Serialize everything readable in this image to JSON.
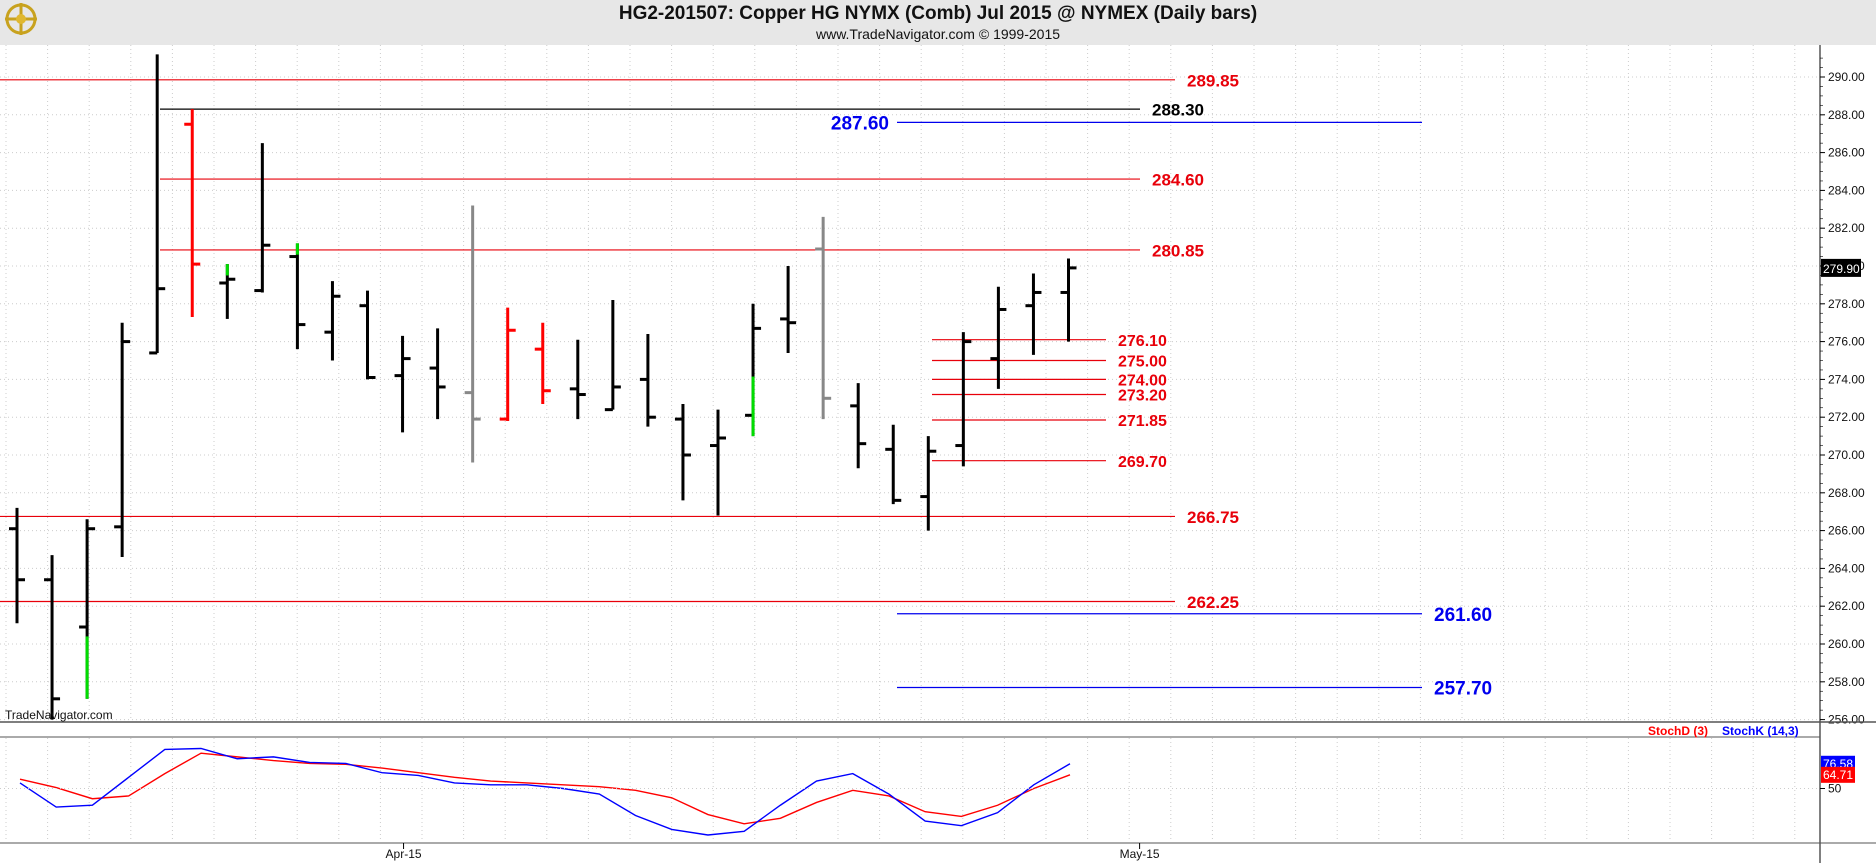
{
  "header": {
    "title": "HG2-201507:  Copper HG NYMX (Comb) Jul 2015 @ NYMEX  (Daily bars)",
    "subtitle": "www.TradeNavigator.com © 1999-2015",
    "watermark": "TradeNavigator.com"
  },
  "colors": {
    "bar": "#000000",
    "down_bar": "#ff0000",
    "grey_bar": "#888888",
    "green_tick": "#00dd00",
    "resistance": "#e8000a",
    "swing": "#000000",
    "target": "#0000ee",
    "stoch_d": "#ff0000",
    "stoch_k": "#0000ff",
    "grid": "#cccccc"
  },
  "chart_data": [
    {
      "type": "ohlc",
      "title": "HG2-201507:  Copper HG NYMX (Comb) Jul 2015 @ NYMEX  (Daily bars)",
      "ylim": [
        255.6,
        291.2
      ],
      "y_ticks": [
        "290.00",
        "288.00",
        "286.00",
        "284.00",
        "282.00",
        "280.00",
        "278.00",
        "276.00",
        "274.00",
        "272.00",
        "270.00",
        "268.00",
        "266.00",
        "264.00",
        "262.00",
        "260.00",
        "258.00",
        "256.00"
      ],
      "x_labels": [
        {
          "label": "Apr-15",
          "bar": 11
        },
        {
          "label": "May-15",
          "bar": 32
        }
      ],
      "last_price": "279.90",
      "bars": [
        {
          "o": 266.1,
          "h": 267.2,
          "l": 261.1,
          "c": 263.4
        },
        {
          "o": 263.4,
          "h": 264.7,
          "l": 256.0,
          "c": 257.1
        },
        {
          "o": 260.9,
          "h": 266.6,
          "l": 257.1,
          "c": 266.1,
          "low_color": "green"
        },
        {
          "o": 266.2,
          "h": 277.0,
          "l": 264.6,
          "c": 276.0
        },
        {
          "o": 275.4,
          "h": 291.2,
          "l": 275.4,
          "c": 278.8
        },
        {
          "o": 287.5,
          "h": 288.3,
          "l": 277.3,
          "c": 280.1,
          "color": "red"
        },
        {
          "o": 279.1,
          "h": 280.1,
          "l": 277.2,
          "c": 279.3,
          "high_color": "green"
        },
        {
          "o": 278.7,
          "h": 286.5,
          "l": 278.6,
          "c": 281.1
        },
        {
          "o": 280.5,
          "h": 281.2,
          "l": 275.6,
          "c": 276.9,
          "high_color": "green"
        },
        {
          "o": 276.5,
          "h": 279.2,
          "l": 275.0,
          "c": 278.4
        },
        {
          "o": 277.9,
          "h": 278.7,
          "l": 274.0,
          "c": 274.1
        },
        {
          "o": 274.2,
          "h": 276.3,
          "l": 271.2,
          "c": 275.1
        },
        {
          "o": 274.6,
          "h": 276.7,
          "l": 271.9,
          "c": 273.6
        },
        {
          "o": 273.3,
          "h": 283.2,
          "l": 269.6,
          "c": 271.9,
          "color": "grey"
        },
        {
          "o": 271.9,
          "h": 277.8,
          "l": 271.8,
          "c": 276.6,
          "color": "red"
        },
        {
          "o": 275.6,
          "h": 277.0,
          "l": 272.7,
          "c": 273.4,
          "color": "red"
        },
        {
          "o": 273.5,
          "h": 276.1,
          "l": 271.9,
          "c": 273.2
        },
        {
          "o": 272.4,
          "h": 278.2,
          "l": 272.4,
          "c": 273.6
        },
        {
          "o": 274.0,
          "h": 276.4,
          "l": 271.5,
          "c": 272.0
        },
        {
          "o": 271.9,
          "h": 272.7,
          "l": 267.6,
          "c": 270.0
        },
        {
          "o": 270.5,
          "h": 272.4,
          "l": 266.8,
          "c": 270.9
        },
        {
          "o": 272.1,
          "h": 278.0,
          "l": 271.0,
          "c": 276.7,
          "low_color": "green"
        },
        {
          "o": 277.2,
          "h": 280.0,
          "l": 275.4,
          "c": 277.0
        },
        {
          "o": 280.9,
          "h": 282.6,
          "l": 271.9,
          "c": 273.0,
          "color": "grey"
        },
        {
          "o": 272.6,
          "h": 273.8,
          "l": 269.3,
          "c": 270.6
        },
        {
          "o": 270.3,
          "h": 271.6,
          "l": 267.4,
          "c": 267.6
        },
        {
          "o": 267.8,
          "h": 271.0,
          "l": 266.0,
          "c": 270.2
        },
        {
          "o": 270.5,
          "h": 276.5,
          "l": 269.4,
          "c": 276.0
        },
        {
          "o": 275.1,
          "h": 278.9,
          "l": 273.5,
          "c": 277.7
        },
        {
          "o": 277.9,
          "h": 279.6,
          "l": 275.3,
          "c": 278.6
        },
        {
          "o": 278.6,
          "h": 280.4,
          "l": 276.0,
          "c": 279.9
        }
      ],
      "levels": [
        {
          "value": 289.85,
          "label": "289.85",
          "color": "red",
          "from": "edge",
          "to": 1175,
          "label_side": "right"
        },
        {
          "value": 288.3,
          "label": "288.30",
          "color": "black",
          "from": 160,
          "to": 1140,
          "label_side": "right"
        },
        {
          "value": 287.6,
          "label": "287.60",
          "color": "blue",
          "from": 897,
          "to": 1422,
          "label_side": "left"
        },
        {
          "value": 284.6,
          "label": "284.60",
          "color": "red",
          "from": 160,
          "to": 1140,
          "label_side": "right"
        },
        {
          "value": 280.85,
          "label": "280.85",
          "color": "red",
          "from": 160,
          "to": 1140,
          "label_side": "right"
        },
        {
          "value": 276.1,
          "label": "276.10",
          "color": "red",
          "from": 932,
          "to": 1106,
          "label_side": "right"
        },
        {
          "value": 275.0,
          "label": "275.00",
          "color": "red",
          "from": 932,
          "to": 1106,
          "label_side": "right"
        },
        {
          "value": 274.0,
          "label": "274.00",
          "color": "red",
          "from": 932,
          "to": 1106,
          "label_side": "right"
        },
        {
          "value": 273.2,
          "label": "273.20",
          "color": "red",
          "from": 932,
          "to": 1106,
          "label_side": "right"
        },
        {
          "value": 271.85,
          "label": "271.85",
          "color": "red",
          "from": 932,
          "to": 1106,
          "label_side": "right"
        },
        {
          "value": 269.7,
          "label": "269.70",
          "color": "red",
          "from": 932,
          "to": 1106,
          "label_side": "right"
        },
        {
          "value": 266.75,
          "label": "266.75",
          "color": "red",
          "from": "edge",
          "to": 1175,
          "label_side": "right"
        },
        {
          "value": 262.25,
          "label": "262.25",
          "color": "red",
          "from": "edge",
          "to": 1175,
          "label_side": "right"
        },
        {
          "value": 261.6,
          "label": "261.60",
          "color": "blue",
          "from": 897,
          "to": 1422,
          "label_side": "right"
        },
        {
          "value": 257.7,
          "label": "257.70",
          "color": "blue",
          "from": 897,
          "to": 1422,
          "label_side": "right"
        }
      ]
    },
    {
      "type": "line",
      "title": "",
      "legend": [
        "StochD (3)",
        "StochK (14,3)"
      ],
      "ylim": [
        0,
        100
      ],
      "y_ticks": [
        "50"
      ],
      "last_values": {
        "k": "76.58",
        "d": "64.71"
      },
      "series": [
        {
          "name": "StochD (3)",
          "color": "red",
          "values": [
            60,
            51,
            39,
            42,
            66,
            88,
            84,
            80,
            77,
            76,
            72,
            67,
            62,
            58,
            56,
            54,
            52,
            48,
            40,
            22,
            12,
            18,
            35,
            48,
            42,
            25,
            20,
            32,
            50,
            64.71
          ]
        },
        {
          "name": "StochK (14,3)",
          "color": "blue",
          "values": [
            56,
            30,
            32,
            62,
            92,
            93,
            82,
            84,
            78,
            77,
            67,
            64,
            56,
            54,
            54,
            50,
            44,
            21,
            6,
            0,
            4,
            32,
            58,
            66,
            44,
            15,
            10,
            24,
            54,
            76.58
          ]
        }
      ]
    }
  ]
}
